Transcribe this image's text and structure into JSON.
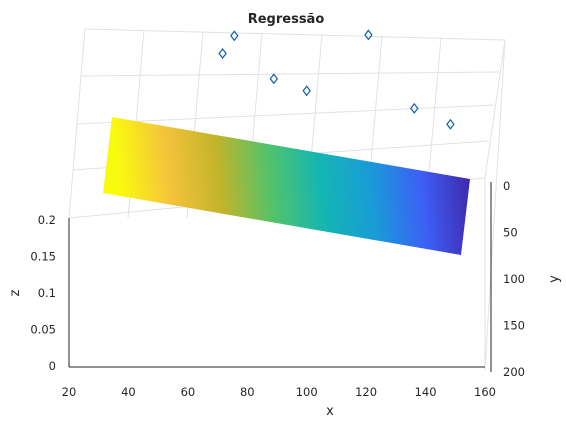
{
  "chart_data": {
    "type": "surface3d",
    "title": "Regressão",
    "xlabel": "x",
    "ylabel": "y",
    "zlabel": "z",
    "x_ticks": [
      20,
      40,
      60,
      80,
      100,
      120,
      140,
      160
    ],
    "y_ticks": [
      0,
      50,
      100,
      150,
      200
    ],
    "z_ticks": [
      "0",
      "0.05",
      "0.1",
      "0.15",
      "0.2"
    ],
    "xlim": [
      20,
      160
    ],
    "ylim": [
      0,
      200
    ],
    "zlim": [
      0,
      0.2
    ],
    "grid": true,
    "colormap": "parula",
    "colormap_stops": [
      "#3e26a8",
      "#3d5ff6",
      "#199bd8",
      "#14b6b2",
      "#52c36a",
      "#c2b42a",
      "#f5c33b",
      "#f9fb0e"
    ],
    "surface": {
      "x_range": [
        30,
        155
      ],
      "y_range": [
        0,
        80
      ]
    },
    "points": [
      {
        "x": 71,
        "y": 42,
        "z": 0.23
      },
      {
        "x": 75,
        "y": 38,
        "z": 0.24
      },
      {
        "x": 88,
        "y": 55,
        "z": 0.2
      },
      {
        "x": 99,
        "y": 60,
        "z": 0.185
      },
      {
        "x": 120,
        "y": 45,
        "z": 0.21
      },
      {
        "x": 135,
        "y": 72,
        "z": 0.155
      },
      {
        "x": 147,
        "y": 80,
        "z": 0.14
      }
    ],
    "marker_color": "#0d5fb0"
  }
}
